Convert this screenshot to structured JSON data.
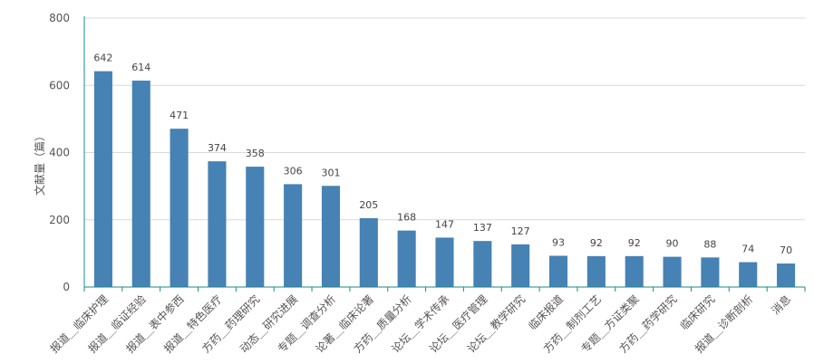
{
  "chart_data": {
    "type": "bar",
    "ylabel": "文献量（篇）",
    "ylim": [
      0,
      800
    ],
    "yticks": [
      0,
      200,
      400,
      600,
      800
    ],
    "grid": true,
    "categories": [
      "报道＿临床护理",
      "报道＿临证经验",
      "报道＿表中参西",
      "报道＿特色医疗",
      "方药＿药理研究",
      "动态＿研究进展",
      "专题＿调查分析",
      "论著＿临床论著",
      "方药＿质量分析",
      "论坛＿学术传承",
      "论坛＿医疗管理",
      "论坛＿教学研究",
      "临床报道",
      "方药＿制剂工艺",
      "专题＿方证类聚",
      "方药＿药学研究",
      "临床研究",
      "报道＿诊断剖析",
      "消息"
    ],
    "values": [
      642,
      614,
      471,
      374,
      358,
      306,
      301,
      205,
      168,
      147,
      137,
      127,
      93,
      92,
      92,
      90,
      88,
      74,
      70
    ],
    "colors": {
      "bar": "#4682b4",
      "axis": "#1a8a8a",
      "grid": "#d9d9d9"
    }
  }
}
